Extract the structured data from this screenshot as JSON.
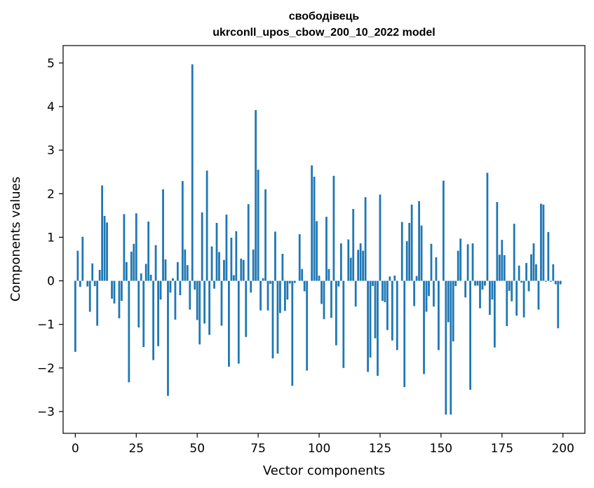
{
  "chart_data": {
    "type": "bar",
    "title": "свободівець",
    "subtitle": "ukrconll_upos_cbow_200_10_2022 model",
    "xlabel": "Vector components",
    "ylabel": "Components values",
    "xlim": [
      -5,
      209
    ],
    "ylim": [
      -3.5,
      5.4
    ],
    "x_ticks": [
      0,
      25,
      50,
      75,
      100,
      125,
      150,
      175,
      200
    ],
    "y_ticks": [
      -3,
      -2,
      -1,
      0,
      1,
      2,
      3,
      4,
      5
    ],
    "x_tick_labels": [
      "0",
      "25",
      "50",
      "75",
      "100",
      "125",
      "150",
      "175",
      "200"
    ],
    "y_tick_labels": [
      "−3",
      "−2",
      "−1",
      "0",
      "1",
      "2",
      "3",
      "4",
      "5"
    ],
    "grid": false,
    "bar_color": "#1f77b4",
    "x": "0..199 (component index)",
    "values": [
      -1.63,
      0.69,
      -0.14,
      1.01,
      0.0,
      -0.13,
      -0.71,
      0.4,
      -0.12,
      -1.03,
      0.25,
      2.19,
      1.49,
      1.34,
      0.0,
      -0.41,
      -0.52,
      0.0,
      -0.86,
      -0.46,
      1.53,
      0.43,
      -2.33,
      0.67,
      0.85,
      1.55,
      -1.07,
      0.17,
      -1.52,
      0.39,
      1.36,
      0.14,
      -1.82,
      0.82,
      -1.5,
      -0.43,
      2.1,
      0.49,
      -2.64,
      -0.27,
      0.06,
      -0.89,
      0.43,
      -0.33,
      2.29,
      0.72,
      0.36,
      -0.66,
      4.97,
      -0.2,
      -0.9,
      -1.46,
      1.57,
      -0.98,
      2.53,
      -1.24,
      0.79,
      -0.18,
      1.33,
      0.66,
      -1.03,
      0.48,
      1.52,
      -1.97,
      0.99,
      0.13,
      1.14,
      -1.9,
      0.51,
      0.48,
      -1.29,
      1.76,
      -0.27,
      0.72,
      3.92,
      2.55,
      -0.68,
      0.06,
      2.1,
      -0.68,
      -0.07,
      -1.78,
      1.13,
      -1.67,
      -0.74,
      0.62,
      -0.69,
      -0.43,
      -0.06,
      -2.41,
      -0.05,
      0.0,
      1.07,
      0.27,
      -0.24,
      -2.06,
      0.0,
      2.65,
      2.39,
      1.37,
      0.12,
      -0.53,
      -0.88,
      1.47,
      0.27,
      -0.85,
      2.41,
      -1.48,
      -0.13,
      0.86,
      -2.0,
      0.0,
      0.95,
      0.53,
      1.65,
      -0.59,
      0.71,
      0.86,
      0.69,
      1.92,
      -2.09,
      -1.76,
      -0.12,
      -1.32,
      -2.18,
      1.98,
      -0.46,
      -0.49,
      -1.13,
      0.1,
      -1.37,
      0.12,
      -1.59,
      0.0,
      1.35,
      -2.44,
      0.91,
      1.33,
      1.75,
      -0.58,
      0.11,
      1.83,
      1.27,
      -2.14,
      -0.71,
      -0.35,
      0.85,
      -0.59,
      0.54,
      -1.59,
      0.0,
      2.3,
      -3.07,
      -0.95,
      -3.07,
      -1.39,
      -0.12,
      0.69,
      0.97,
      0.0,
      -0.38,
      0.84,
      -2.5,
      0.86,
      -0.11,
      -0.11,
      -0.63,
      -0.2,
      -0.11,
      2.48,
      -0.78,
      -0.43,
      -1.53,
      1.81,
      0.6,
      0.94,
      0.59,
      -1.04,
      -0.23,
      -0.47,
      1.31,
      -0.8,
      0.35,
      -0.04,
      -0.84,
      0.41,
      -0.24,
      0.61,
      0.86,
      0.38,
      -0.66,
      1.77,
      1.75,
      -0.02,
      1.12,
      -0.02,
      0.38,
      -0.08,
      -1.09,
      -0.08
    ]
  }
}
